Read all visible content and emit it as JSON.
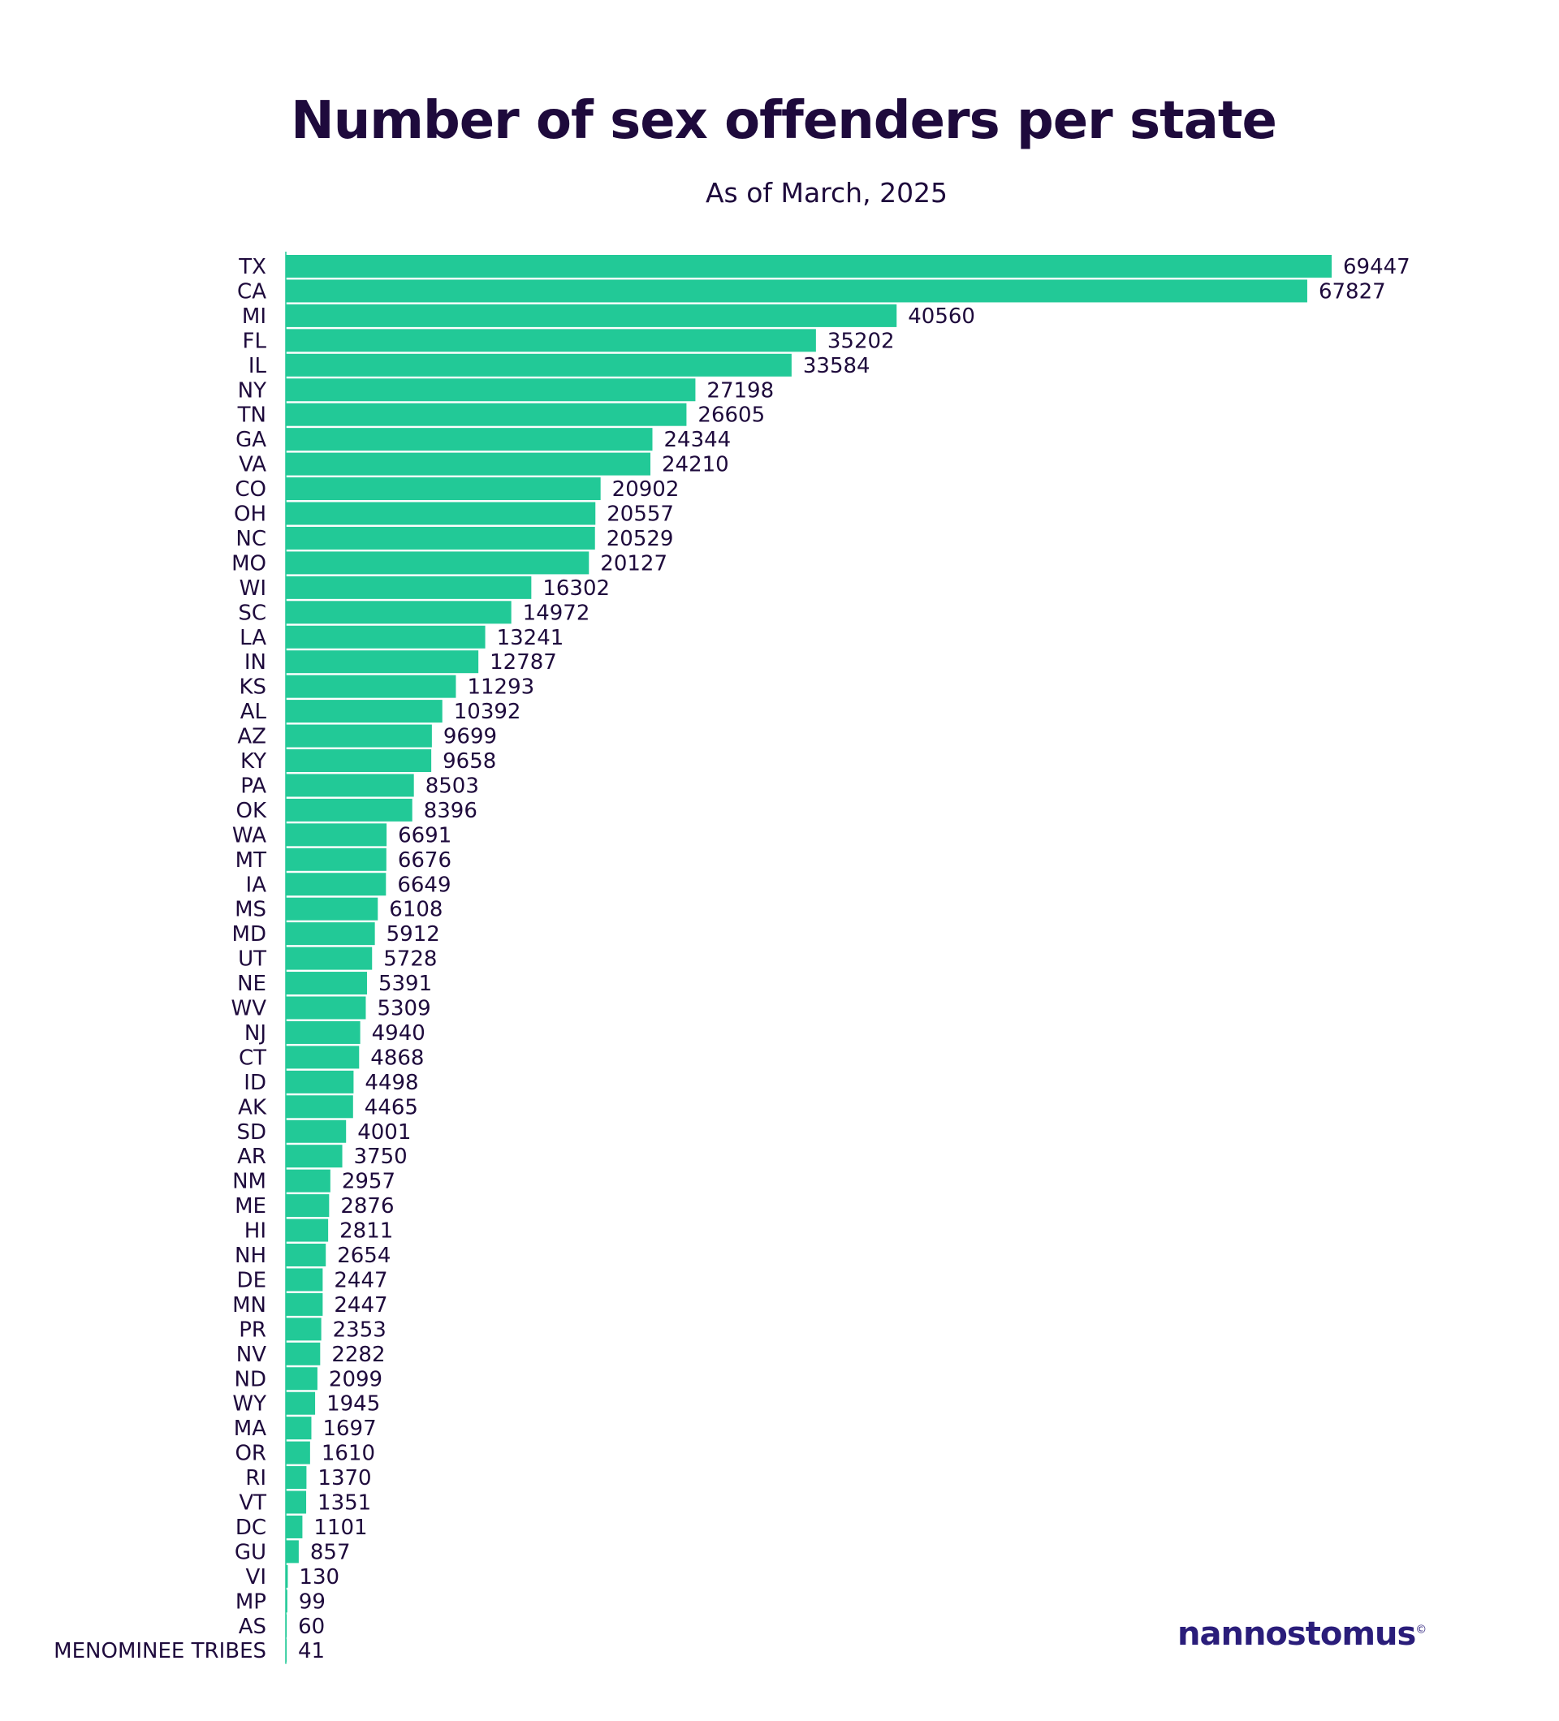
{
  "chart_data": {
    "type": "bar",
    "orientation": "horizontal",
    "title": "Number of sex offenders per state",
    "subtitle": "As of March, 2025",
    "bar_color": "#22c997",
    "text_color": "#1e0a3c",
    "categories": [
      "TX",
      "CA",
      "MI",
      "FL",
      "IL",
      "NY",
      "TN",
      "GA",
      "VA",
      "CO",
      "OH",
      "NC",
      "MO",
      "WI",
      "SC",
      "LA",
      "IN",
      "KS",
      "AL",
      "AZ",
      "KY",
      "PA",
      "OK",
      "WA",
      "MT",
      "IA",
      "MS",
      "MD",
      "UT",
      "NE",
      "WV",
      "NJ",
      "CT",
      "ID",
      "AK",
      "SD",
      "AR",
      "NM",
      "ME",
      "HI",
      "NH",
      "DE",
      "MN",
      "PR",
      "NV",
      "ND",
      "WY",
      "MA",
      "OR",
      "RI",
      "VT",
      "DC",
      "GU",
      "VI",
      "MP",
      "AS",
      "MENOMINEE TRIBES"
    ],
    "values": [
      69447,
      67827,
      40560,
      35202,
      33584,
      27198,
      26605,
      24344,
      24210,
      20902,
      20557,
      20529,
      20127,
      16302,
      14972,
      13241,
      12787,
      11293,
      10392,
      9699,
      9658,
      8503,
      8396,
      6691,
      6676,
      6649,
      6108,
      5912,
      5728,
      5391,
      5309,
      4940,
      4868,
      4498,
      4465,
      4001,
      3750,
      2957,
      2876,
      2811,
      2654,
      2447,
      2447,
      2353,
      2282,
      2099,
      1945,
      1697,
      1610,
      1370,
      1351,
      1101,
      857,
      130,
      99,
      60,
      41
    ],
    "data_labels": true,
    "grid": false
  },
  "branding": {
    "logo_text": "nannostomus",
    "logo_mark": "©"
  }
}
